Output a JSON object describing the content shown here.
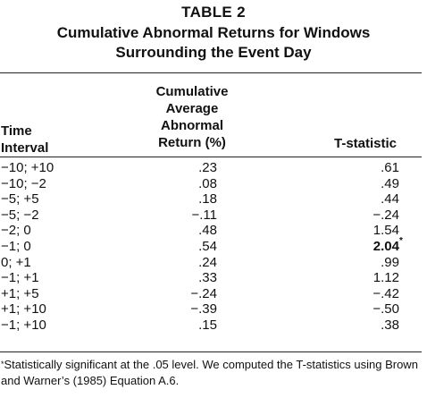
{
  "table": {
    "number": "TABLE 2",
    "title_line1": "Cumulative Abnormal Returns for Windows",
    "title_line2": "Surrounding the Event Day"
  },
  "headers": {
    "time_line1": "Time",
    "time_line2": "Interval",
    "car_line1": "Cumulative",
    "car_line2": "Average",
    "car_line3": "Abnormal",
    "car_line4": "Return (%)",
    "t_stat": "T-statistic"
  },
  "rows": [
    {
      "interval": "−10; +10",
      "car": ".23",
      "t": ".61"
    },
    {
      "interval": "−10; −2",
      "car": ".08",
      "t": ".49"
    },
    {
      "interval": "−5; +5",
      "car": ".18",
      "t": ".44"
    },
    {
      "interval": "−5; −2",
      "car": "−.11",
      "t": "−.24"
    },
    {
      "interval": "−2; 0",
      "car": ".48",
      "t": "1.54"
    },
    {
      "interval": "−1; 0",
      "car": ".54",
      "t": "2.04",
      "marker": "*"
    },
    {
      "interval": "0; +1",
      "car": ".24",
      "t": ".99"
    },
    {
      "interval": "−1; +1",
      "car": ".33",
      "t": "1.12"
    },
    {
      "interval": "+1; +5",
      "car": "−.24",
      "t": "−.42"
    },
    {
      "interval": "+1; +10",
      "car": "−.39",
      "t": "−.50"
    },
    {
      "interval": "−1; +10",
      "car": ".15",
      "t": ".38"
    }
  ],
  "footnote": {
    "marker": "*",
    "text": "Statistically significant at the .05 level. We computed the T-statistics using Brown and Warner’s (1985) Equation A.6."
  }
}
